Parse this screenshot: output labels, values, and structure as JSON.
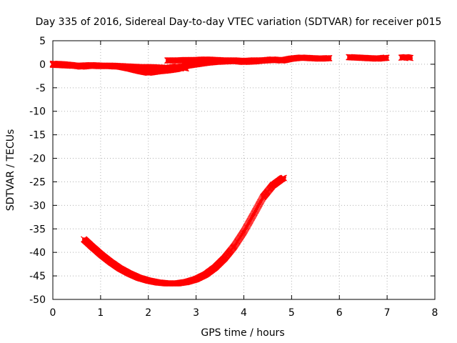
{
  "chart_data": {
    "type": "scatter",
    "title": "Day 335 of 2016, Sidereal Day-to-day VTEC variation (SDTVAR) for receiver p015",
    "xlabel": "GPS time / hours",
    "ylabel": "SDTVAR / TECUs",
    "xlim": [
      0,
      8
    ],
    "ylim": [
      -50,
      5
    ],
    "xticks": [
      "0",
      "1",
      "2",
      "3",
      "4",
      "5",
      "6",
      "7",
      "8"
    ],
    "yticks": [
      "5",
      "0",
      "-5",
      "-10",
      "-15",
      "-20",
      "-25",
      "-30",
      "-35",
      "-40",
      "-45",
      "-50"
    ],
    "grid": true,
    "legend": "none",
    "series": [
      {
        "color": "#ff0000",
        "marker": "cross",
        "x": [
          0.0,
          0.2,
          0.4,
          0.6,
          0.8,
          1.0,
          1.2,
          1.4,
          1.6,
          1.8,
          2.0,
          2.2,
          2.4,
          2.6,
          2.8,
          3.0,
          3.2,
          3.4,
          3.6,
          3.8,
          4.0,
          4.2,
          4.4,
          4.6,
          4.8,
          5.0,
          5.2,
          5.4,
          5.6,
          5.8,
          6.2,
          6.4,
          6.6,
          6.8,
          7.0,
          7.3,
          7.4,
          7.5
        ],
        "y": [
          0.1,
          0.0,
          -0.2,
          -0.5,
          -0.3,
          -0.4,
          -0.4,
          -0.5,
          -0.9,
          -1.4,
          -1.8,
          -1.5,
          -1.3,
          -1.0,
          -0.3,
          0.0,
          0.3,
          0.5,
          0.6,
          0.7,
          0.5,
          0.6,
          0.8,
          1.0,
          0.8,
          1.2,
          1.4,
          1.3,
          1.2,
          1.3,
          1.5,
          1.4,
          1.3,
          1.2,
          1.4,
          1.4,
          1.5,
          1.3
        ]
      },
      {
        "color": "#ff0000",
        "marker": "cross",
        "x": [
          2.4,
          2.6,
          2.8,
          3.0,
          3.2,
          3.4,
          3.6,
          3.8,
          4.0,
          4.2,
          4.4,
          4.6,
          4.8
        ],
        "y": [
          0.8,
          0.8,
          0.9,
          0.9,
          1.0,
          0.9,
          0.8,
          0.8,
          0.7,
          0.8,
          0.8,
          0.9,
          0.9
        ]
      },
      {
        "color": "#ff0000",
        "marker": "cross",
        "x": [
          0.0,
          0.2,
          0.4,
          0.6,
          0.8,
          1.0,
          1.2,
          1.4,
          1.6,
          1.8,
          2.0,
          2.2,
          2.4,
          2.6,
          2.8
        ],
        "y": [
          -0.1,
          -0.2,
          -0.3,
          -0.3,
          -0.2,
          -0.3,
          -0.3,
          -0.4,
          -0.5,
          -0.6,
          -0.6,
          -0.7,
          -0.8,
          -0.5,
          -0.9
        ]
      },
      {
        "color": "#ff0000",
        "marker": "cross",
        "x": [
          0.65,
          0.8,
          1.0,
          1.2,
          1.4,
          1.6,
          1.8,
          2.0,
          2.2,
          2.4,
          2.6,
          2.8,
          3.0,
          3.2,
          3.4,
          3.6,
          3.8,
          4.0,
          4.2,
          4.4,
          4.6,
          4.8,
          4.85
        ],
        "y": [
          -37.2,
          -38.6,
          -40.4,
          -42.0,
          -43.4,
          -44.5,
          -45.4,
          -46.0,
          -46.4,
          -46.6,
          -46.6,
          -46.3,
          -45.7,
          -44.7,
          -43.2,
          -41.2,
          -38.7,
          -35.6,
          -32.0,
          -28.3,
          -25.8,
          -24.3,
          -24.1
        ]
      }
    ]
  }
}
